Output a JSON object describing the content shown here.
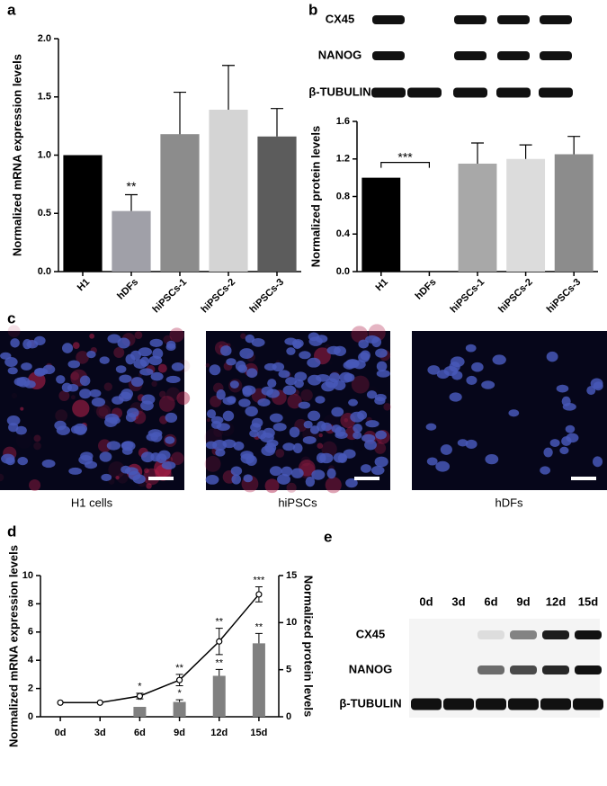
{
  "figure": {
    "labels": [
      "a",
      "b",
      "c",
      "d",
      "e"
    ],
    "blot_b": {
      "rows": [
        "CX45",
        "NANOG",
        "β-TUBULIN"
      ]
    },
    "images": {
      "captions": [
        "H1 cells",
        "hiPSCs",
        "hDFs"
      ]
    },
    "blot_e": {
      "columns": [
        "0d",
        "3d",
        "6d",
        "9d",
        "12d",
        "15d"
      ],
      "rows": [
        "CX45",
        "NANOG",
        "β-TUBULIN"
      ]
    }
  },
  "chart_data": [
    {
      "type": "bar",
      "ylabel": "Normalized mRNA expression levels",
      "categories": [
        "H1",
        "hDFs",
        "hiPSCs-1",
        "hiPSCs-2",
        "hiPSCs-3"
      ],
      "values": [
        1.0,
        0.52,
        1.18,
        1.39,
        1.16
      ],
      "errors": [
        0,
        0.14,
        0.36,
        0.38,
        0.24
      ],
      "colors": [
        "#000000",
        "#a0a0a8",
        "#8c8c8c",
        "#d4d4d4",
        "#5c5c5c"
      ],
      "annotations": [
        null,
        "**",
        null,
        null,
        null
      ],
      "ylim": [
        0,
        2.0
      ],
      "yticks": [
        {
          "value": 0,
          "label": "0.0"
        },
        0.5,
        {
          "value": 1,
          "label": "1.0"
        },
        1.5,
        {
          "value": 2,
          "label": "2.0"
        }
      ]
    },
    {
      "type": "bar",
      "ylabel": "Normalized protein levels",
      "categories": [
        "H1",
        "hDFs",
        "hiPSCs-1",
        "hiPSCs-2",
        "hiPSCs-3"
      ],
      "values": [
        1.0,
        0,
        1.15,
        1.2,
        1.25
      ],
      "errors": [
        0,
        0,
        0.22,
        0.15,
        0.19
      ],
      "colors": [
        "#000000",
        "#a0a0a8",
        "#a8a8a8",
        "#dcdcdc",
        "#8c8c8c"
      ],
      "annotations": [
        null,
        "***",
        null,
        null,
        null
      ],
      "bracket": true,
      "ylim": [
        0,
        1.6
      ],
      "yticks": [
        {
          "value": 0,
          "label": "0.0"
        },
        0.4,
        0.8,
        1.2,
        1.6
      ]
    },
    {
      "type": "combo",
      "ylabel": "Normalized mRNA expression levels",
      "y2label": "Normalized protein levels",
      "categories": [
        "0d",
        "3d",
        "6d",
        "9d",
        "12d",
        "15d"
      ],
      "series": [
        {
          "kind": "bar",
          "color": "#808080",
          "values": [
            null,
            null,
            0.7,
            1.05,
            2.9,
            5.2
          ],
          "errors": [
            null,
            null,
            null,
            0.15,
            0.45,
            0.7
          ],
          "annotations": [
            null,
            null,
            "*",
            "*",
            "**",
            "**"
          ]
        },
        {
          "kind": "line",
          "axis": "y2",
          "color": "#000000",
          "values": [
            1.5,
            1.5,
            2.2,
            3.9,
            8.0,
            13.0
          ],
          "errors": [
            0,
            0,
            0.3,
            0.6,
            1.4,
            0.8
          ],
          "annotations": [
            null,
            null,
            "*",
            "**",
            "**",
            "***"
          ]
        }
      ],
      "ylim": [
        0,
        10
      ],
      "yticks": [
        0,
        2,
        4,
        6,
        8,
        10
      ],
      "y2lim": [
        0,
        15
      ],
      "y2ticks": [
        0,
        5,
        10,
        15
      ]
    }
  ]
}
